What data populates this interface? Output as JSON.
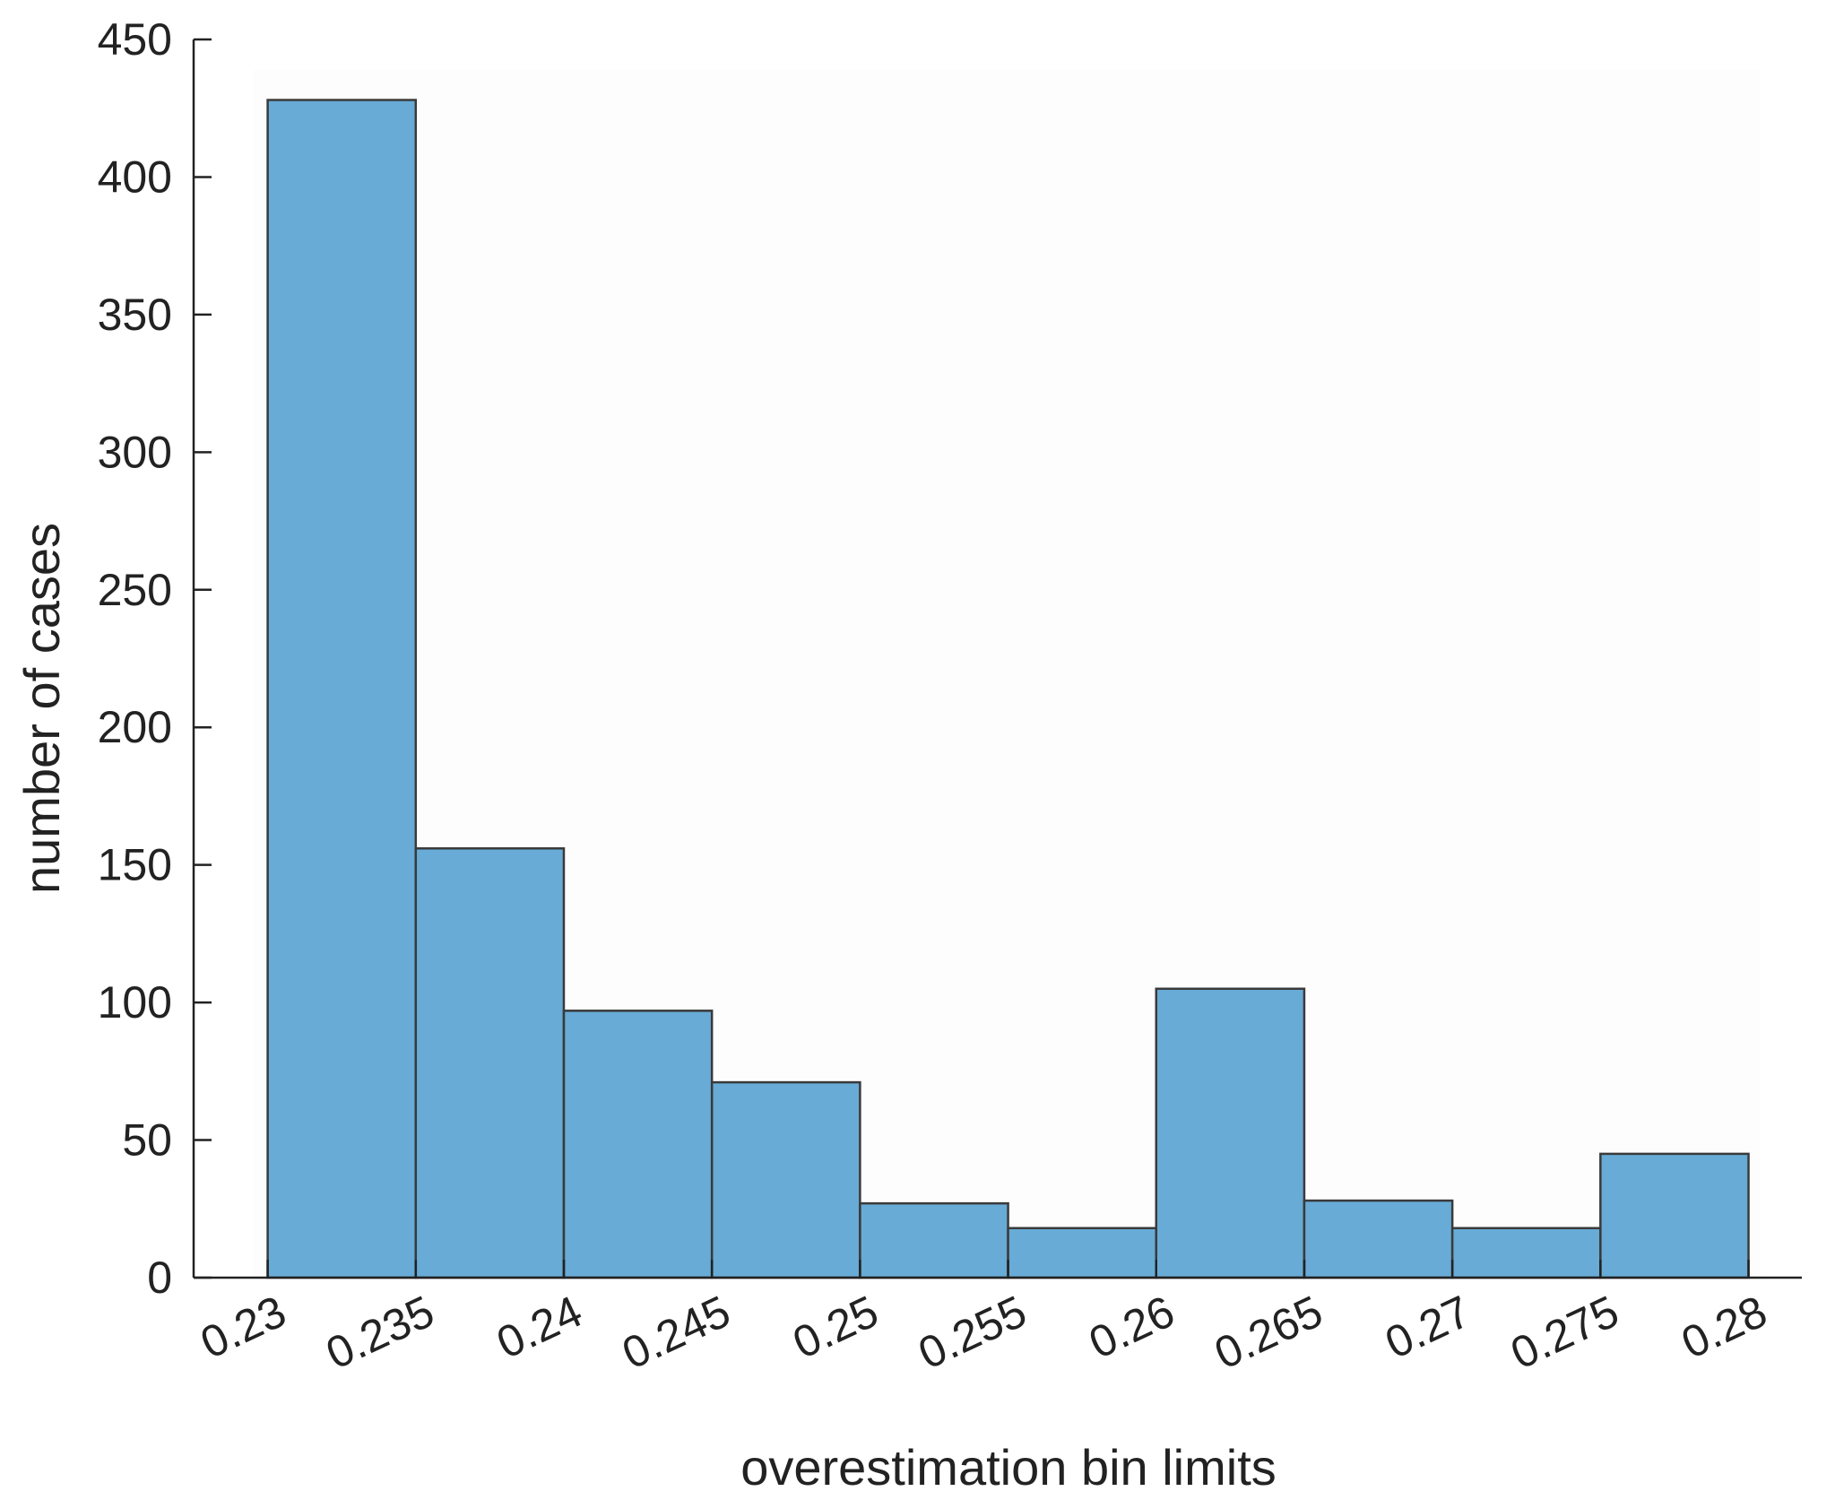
{
  "chart_data": {
    "type": "bar",
    "title": "",
    "xlabel": "overestimation bin limits",
    "ylabel": "number of cases",
    "bin_edges": [
      0.23,
      0.235,
      0.24,
      0.245,
      0.25,
      0.255,
      0.26,
      0.265,
      0.27,
      0.275,
      0.28
    ],
    "x_tick_labels": [
      "0.23",
      "0.235",
      "0.24",
      "0.245",
      "0.25",
      "0.255",
      "0.26",
      "0.265",
      "0.27",
      "0.275",
      "0.28"
    ],
    "values": [
      428,
      156,
      97,
      71,
      27,
      18,
      105,
      28,
      18,
      45
    ],
    "xlim": [
      0.2275,
      0.2818
    ],
    "ylim": [
      0,
      450
    ],
    "y_ticks": [
      0,
      50,
      100,
      150,
      200,
      250,
      300,
      350,
      400,
      450
    ],
    "grid": false,
    "legend": "none",
    "colors": {
      "bar_fill": "#67abd6",
      "bar_edge": "#3a3a3a",
      "axis": "#222222",
      "plot_background": "#fdfdfd"
    }
  }
}
